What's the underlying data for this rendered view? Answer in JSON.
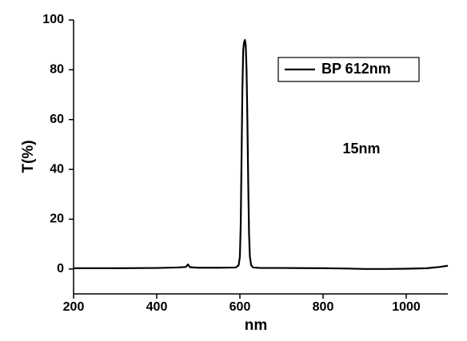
{
  "chart_data": {
    "type": "line",
    "xlabel": "nm",
    "ylabel": "T(%)",
    "annotation": "15nm",
    "x": [
      200,
      300,
      400,
      450,
      470,
      475,
      480,
      500,
      550,
      590,
      597,
      600,
      602,
      604,
      606,
      608,
      610,
      612,
      614,
      616,
      618,
      620,
      622,
      624,
      627,
      632,
      650,
      700,
      800,
      850,
      900,
      950,
      1000,
      1050,
      1080,
      1100
    ],
    "series": [
      {
        "name": "BP 612nm",
        "color": "#000000",
        "values": [
          0.3,
          0.3,
          0.4,
          0.6,
          0.8,
          1.8,
          0.7,
          0.5,
          0.5,
          0.6,
          1.5,
          5,
          18,
          45,
          72,
          88,
          91,
          92,
          90,
          80,
          60,
          35,
          14,
          5,
          1.5,
          0.6,
          0.4,
          0.4,
          0.3,
          0.2,
          0,
          0,
          0.1,
          0.3,
          0.8,
          1.3
        ]
      }
    ],
    "xlim": [
      200,
      1100
    ],
    "xticks": [
      200,
      400,
      600,
      800,
      1000
    ],
    "ylim": [
      -10,
      100
    ],
    "yticks": [
      0,
      20,
      40,
      60,
      80,
      100
    ],
    "legend": "upper right"
  }
}
